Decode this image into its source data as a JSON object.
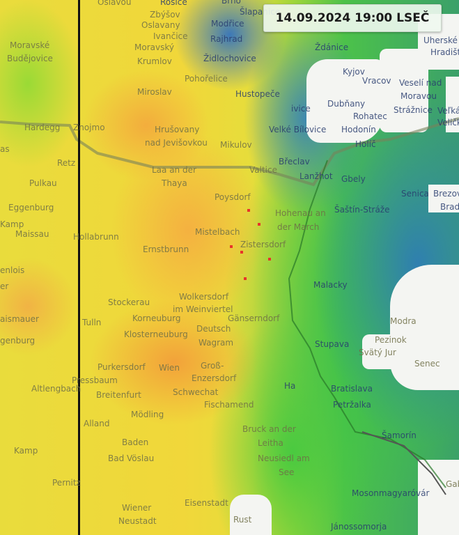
{
  "timestamp": "14.09.2024 19:00 LSEČ",
  "colors": {
    "low": "#3ba06a",
    "mid": "#e9dc3c",
    "high": "#f2a23a",
    "extreme": "#e8342a",
    "nodata": "#f4f5f2"
  },
  "places": [
    "Oslavou",
    "Rosice",
    "Zbýšov",
    "Oslavany",
    "Ivančice",
    "Brno",
    "Šlapanice",
    "Modřice",
    "Rajhrad",
    "Moravské",
    "Budějovice",
    "Moravský",
    "Krumlov",
    "Židlochovice",
    "Pohořelice",
    "Hustopeče",
    "Miroslav",
    "Hardegg",
    "Znojmo",
    "Hrušovany",
    "nad Jevišovkou",
    "Mikulov",
    "Velké Bílovice",
    "Retz",
    "Laa an der",
    "Thaya",
    "Valtice",
    "Břeclav",
    "Lanžhot",
    "Pulkau",
    "Poysdorf",
    "Eggenburg",
    "Kamp",
    "Maissau",
    "Hollabrunn",
    "Mistelbach",
    "Hohenau an",
    "der March",
    "Ernstbrunn",
    "Zistersdorf",
    "enlois",
    "Malacky",
    "Stockerau",
    "Wolkersdorf",
    "im Weinviertel",
    "Tulln",
    "Korneuburg",
    "Gänserndorf",
    "Deutsch",
    "Wagram",
    "Klosterneuburg",
    "aismauer",
    "genburg",
    "Stupava",
    "Pezinok",
    "Modra",
    "Svätý Jur",
    "Senec",
    "Purkersdorf",
    "Wien",
    "Groß-",
    "Enzersdorf",
    "Pressbaum",
    "Altlengbach",
    "Breitenfurt",
    "Schwechat",
    "Fischamend",
    "Bratislava",
    "Petržalka",
    "Mödling",
    "Alland",
    "Bruck an der",
    "Leitha",
    "Šamorín",
    "Baden",
    "Bad Vöslau",
    "Neusiedl am",
    "See",
    "Pernitz",
    "Mosonmagyaróvár",
    "Wiener",
    "Neustadt",
    "Eisenstadt",
    "Rust",
    "Jánossomorja",
    "Gab",
    "Ždánice",
    "Kyjov",
    "Vracov",
    "Veselí nad",
    "Moravou",
    "Dubňany",
    "Rohatec",
    "Strážnice",
    "Hodonín",
    "Holíč",
    "Gbely",
    "Šaštín-Stráže",
    "Senica",
    "Brezová",
    "Uherské",
    "Hradiště",
    "Veľká",
    "Veličky",
    "Brad",
    "ivice",
    "Ha",
    "as",
    "er",
    "Kamp"
  ]
}
